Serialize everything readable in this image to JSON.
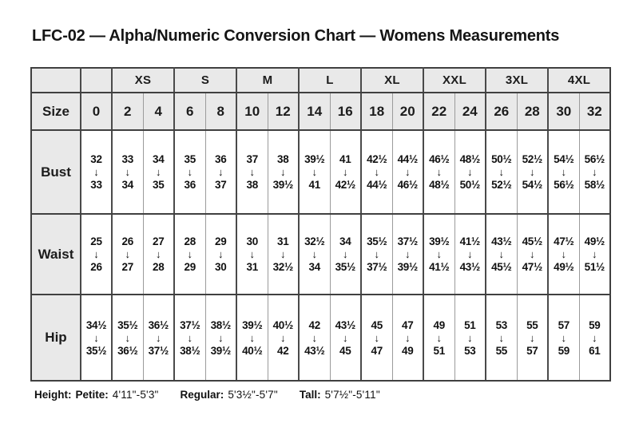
{
  "title": "LFC-02 — Alpha/Numeric Conversion Chart — Womens Measurements",
  "table": {
    "corner_label": "",
    "arrow": "↓",
    "alpha_groups": [
      {
        "label": "",
        "span": 1
      },
      {
        "label": "XS",
        "span": 2
      },
      {
        "label": "S",
        "span": 2
      },
      {
        "label": "M",
        "span": 2
      },
      {
        "label": "L",
        "span": 2
      },
      {
        "label": "XL",
        "span": 2
      },
      {
        "label": "XXL",
        "span": 2
      },
      {
        "label": "3XL",
        "span": 2
      },
      {
        "label": "4XL",
        "span": 2
      }
    ],
    "size_row_label": "Size",
    "sizes": [
      "0",
      "2",
      "4",
      "6",
      "8",
      "10",
      "12",
      "14",
      "16",
      "18",
      "20",
      "22",
      "24",
      "26",
      "28",
      "30",
      "32"
    ],
    "rows": [
      {
        "label": "Bust",
        "ranges": [
          {
            "from": "32",
            "to": "33"
          },
          {
            "from": "33",
            "to": "34"
          },
          {
            "from": "34",
            "to": "35"
          },
          {
            "from": "35",
            "to": "36"
          },
          {
            "from": "36",
            "to": "37"
          },
          {
            "from": "37",
            "to": "38"
          },
          {
            "from": "38",
            "to": "39½"
          },
          {
            "from": "39½",
            "to": "41"
          },
          {
            "from": "41",
            "to": "42½"
          },
          {
            "from": "42½",
            "to": "44½"
          },
          {
            "from": "44½",
            "to": "46½"
          },
          {
            "from": "46½",
            "to": "48½"
          },
          {
            "from": "48½",
            "to": "50½"
          },
          {
            "from": "50½",
            "to": "52½"
          },
          {
            "from": "52½",
            "to": "54½"
          },
          {
            "from": "54½",
            "to": "56½"
          },
          {
            "from": "56½",
            "to": "58½"
          }
        ]
      },
      {
        "label": "Waist",
        "ranges": [
          {
            "from": "25",
            "to": "26"
          },
          {
            "from": "26",
            "to": "27"
          },
          {
            "from": "27",
            "to": "28"
          },
          {
            "from": "28",
            "to": "29"
          },
          {
            "from": "29",
            "to": "30"
          },
          {
            "from": "30",
            "to": "31"
          },
          {
            "from": "31",
            "to": "32½"
          },
          {
            "from": "32½",
            "to": "34"
          },
          {
            "from": "34",
            "to": "35½"
          },
          {
            "from": "35½",
            "to": "37½"
          },
          {
            "from": "37½",
            "to": "39½"
          },
          {
            "from": "39½",
            "to": "41½"
          },
          {
            "from": "41½",
            "to": "43½"
          },
          {
            "from": "43½",
            "to": "45½"
          },
          {
            "from": "45½",
            "to": "47½"
          },
          {
            "from": "47½",
            "to": "49½"
          },
          {
            "from": "49½",
            "to": "51½"
          }
        ]
      },
      {
        "label": "Hip",
        "ranges": [
          {
            "from": "34½",
            "to": "35½"
          },
          {
            "from": "35½",
            "to": "36½"
          },
          {
            "from": "36½",
            "to": "37½"
          },
          {
            "from": "37½",
            "to": "38½"
          },
          {
            "from": "38½",
            "to": "39½"
          },
          {
            "from": "39½",
            "to": "40½"
          },
          {
            "from": "40½",
            "to": "42"
          },
          {
            "from": "42",
            "to": "43½"
          },
          {
            "from": "43½",
            "to": "45"
          },
          {
            "from": "45",
            "to": "47"
          },
          {
            "from": "47",
            "to": "49"
          },
          {
            "from": "49",
            "to": "51"
          },
          {
            "from": "51",
            "to": "53"
          },
          {
            "from": "53",
            "to": "55"
          },
          {
            "from": "55",
            "to": "57"
          },
          {
            "from": "57",
            "to": "59"
          },
          {
            "from": "59",
            "to": "61"
          }
        ]
      }
    ]
  },
  "footer": {
    "prefix": "Height:",
    "segments": [
      {
        "label": "Petite:",
        "value": "4'11\"-5'3\""
      },
      {
        "label": "Regular:",
        "value": "5'3½\"-5'7\""
      },
      {
        "label": "Tall:",
        "value": "5'7½\"-5'11\""
      }
    ]
  },
  "colors": {
    "header_bg": "#e9e9e9",
    "border_dark": "#404040",
    "border_light": "#9b9b9b",
    "text": "#1a1a1a"
  }
}
